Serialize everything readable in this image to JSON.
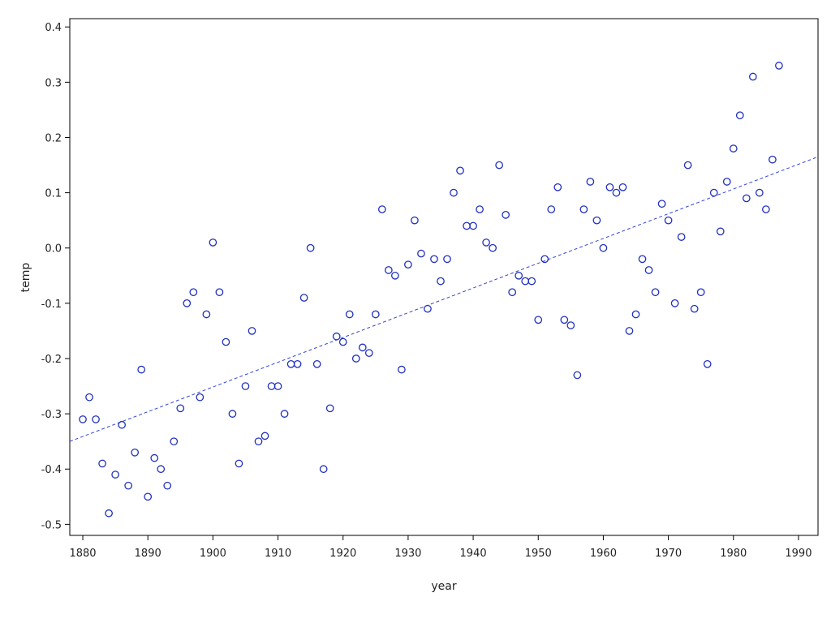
{
  "chart_data": {
    "type": "scatter",
    "title": "",
    "xlabel": "year",
    "ylabel": "temp",
    "xlim": [
      1878,
      1993
    ],
    "ylim": [
      -0.52,
      0.415
    ],
    "xticks": [
      1880,
      1890,
      1900,
      1910,
      1920,
      1930,
      1940,
      1950,
      1960,
      1970,
      1980,
      1990
    ],
    "yticks": [
      -0.5,
      -0.4,
      -0.3,
      -0.2,
      -0.1,
      0.0,
      0.1,
      0.2,
      0.3,
      0.4
    ],
    "ytick_labels": [
      "-0.5",
      "-0.4",
      "-0.3",
      "-0.2",
      "-0.1",
      "0.0",
      "0.1",
      "0.2",
      "0.3",
      "0.4"
    ],
    "grid": false,
    "marker_color": "#1f2fbf",
    "line_color": "#3344d6",
    "points": {
      "x": [
        1880,
        1881,
        1882,
        1883,
        1884,
        1885,
        1886,
        1887,
        1888,
        1889,
        1890,
        1891,
        1892,
        1893,
        1894,
        1895,
        1896,
        1897,
        1898,
        1899,
        1900,
        1901,
        1902,
        1903,
        1904,
        1905,
        1906,
        1907,
        1908,
        1909,
        1910,
        1911,
        1912,
        1913,
        1914,
        1915,
        1916,
        1917,
        1918,
        1919,
        1920,
        1921,
        1922,
        1923,
        1924,
        1925,
        1926,
        1927,
        1928,
        1929,
        1930,
        1931,
        1932,
        1933,
        1934,
        1935,
        1936,
        1937,
        1938,
        1939,
        1940,
        1941,
        1942,
        1943,
        1944,
        1945,
        1946,
        1947,
        1948,
        1949,
        1950,
        1951,
        1952,
        1953,
        1954,
        1955,
        1956,
        1957,
        1958,
        1959,
        1960,
        1961,
        1962,
        1963,
        1964,
        1965,
        1966,
        1967,
        1968,
        1969,
        1970,
        1971,
        1972,
        1973,
        1974,
        1975,
        1976,
        1977,
        1978,
        1979,
        1980,
        1981,
        1982,
        1983,
        1984,
        1985,
        1986,
        1987
      ],
      "y": [
        -0.31,
        -0.27,
        -0.31,
        -0.39,
        -0.48,
        -0.41,
        -0.32,
        -0.43,
        -0.37,
        -0.22,
        -0.45,
        -0.38,
        -0.4,
        -0.43,
        -0.35,
        -0.29,
        -0.1,
        -0.08,
        -0.27,
        -0.12,
        0.01,
        -0.08,
        -0.17,
        -0.3,
        -0.39,
        -0.25,
        -0.15,
        -0.35,
        -0.34,
        -0.25,
        -0.25,
        -0.3,
        -0.21,
        -0.21,
        -0.09,
        0.0,
        -0.21,
        -0.4,
        -0.29,
        -0.16,
        -0.17,
        -0.12,
        -0.2,
        -0.18,
        -0.19,
        -0.12,
        0.07,
        -0.04,
        -0.05,
        -0.22,
        -0.03,
        0.05,
        -0.01,
        -0.11,
        -0.02,
        -0.06,
        -0.02,
        0.1,
        0.14,
        0.04,
        0.04,
        0.07,
        0.01,
        0.0,
        0.15,
        0.06,
        -0.08,
        -0.05,
        -0.06,
        -0.06,
        -0.13,
        -0.02,
        0.07,
        0.11,
        -0.13,
        -0.14,
        -0.23,
        0.07,
        0.12,
        0.05,
        0.0,
        0.11,
        0.1,
        0.11,
        -0.15,
        -0.12,
        -0.02,
        -0.04,
        -0.08,
        0.08,
        0.05,
        -0.1,
        0.02,
        0.15,
        -0.11,
        -0.08,
        -0.21,
        0.1,
        0.03,
        0.12,
        0.18,
        0.24,
        0.09,
        0.31,
        0.1,
        0.07,
        0.16,
        0.33
      ]
    },
    "fit_line": {
      "style": "dashed",
      "x": [
        1878,
        1993
      ],
      "y": [
        -0.35,
        0.165
      ]
    }
  }
}
